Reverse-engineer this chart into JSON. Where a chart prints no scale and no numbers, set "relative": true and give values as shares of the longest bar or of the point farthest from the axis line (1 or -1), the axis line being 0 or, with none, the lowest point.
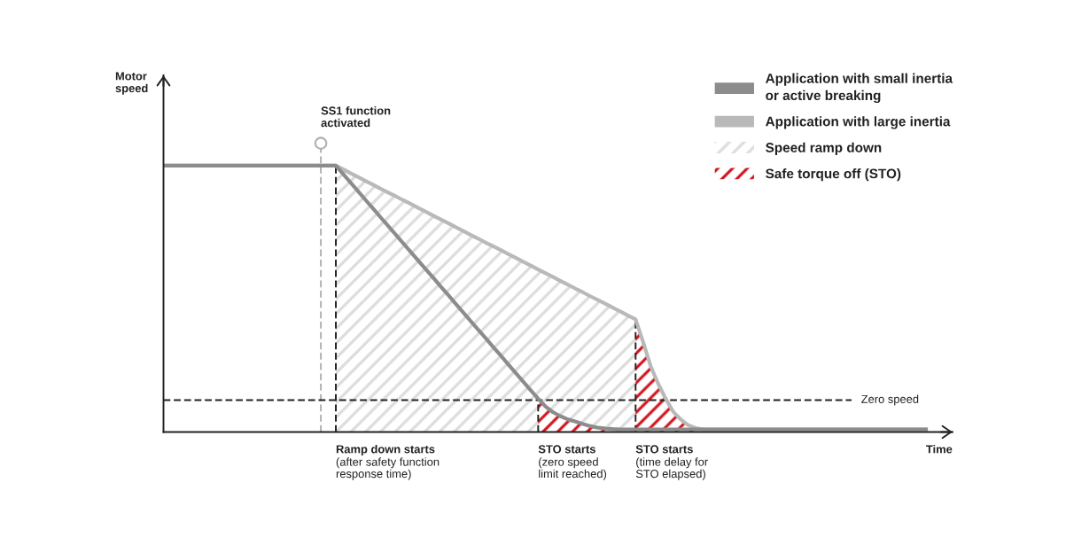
{
  "chart_data": {
    "type": "line",
    "relative": true,
    "xlabel": "Time",
    "legend": "top right",
    "categories": [
      null,
      null,
      null,
      null,
      null,
      null,
      null,
      null,
      null,
      null,
      null,
      null,
      null,
      null,
      null,
      null,
      null,
      null,
      null,
      null,
      null,
      null,
      null,
      null,
      null,
      null,
      null,
      null,
      null,
      null,
      null,
      null,
      null,
      null,
      null,
      null,
      null,
      null,
      null,
      null,
      null,
      null,
      null,
      null,
      null,
      null,
      null,
      null,
      null,
      null,
      null,
      null,
      null,
      null,
      null,
      null,
      null,
      null,
      null,
      null,
      null,
      null,
      null,
      null,
      null,
      null,
      null,
      null,
      null,
      null,
      null,
      null,
      null,
      null,
      null,
      null,
      null,
      null,
      null,
      null,
      null,
      null,
      null,
      null,
      null,
      null,
      null,
      null,
      null,
      null,
      null,
      null,
      null,
      null,
      null,
      null,
      null,
      null,
      null,
      null,
      null,
      null,
      null
    ],
    "series": [
      {
        "name": "Application with small inertia\nor active breaking",
        "color": "#8c8c8c",
        "values": [
          1,
          1,
          1,
          1,
          1,
          1,
          1,
          1,
          1,
          1,
          1,
          1,
          1,
          1,
          1,
          1,
          1,
          1,
          1,
          1,
          1,
          1,
          1,
          1.0,
          0.968,
          0.935,
          0.903,
          0.87,
          0.838,
          0.805,
          0.773,
          0.741,
          0.708,
          0.676,
          0.643,
          0.611,
          0.579,
          0.546,
          0.514,
          0.481,
          0.449,
          0.416,
          0.384,
          0.352,
          0.319,
          0.287,
          0.254,
          0.222,
          0.189,
          0.157,
          0.125,
          0.095,
          0.074,
          0.059,
          0.047,
          0.039,
          0.03,
          0.022,
          0.016,
          0.013,
          0.011,
          0.01,
          0.01,
          0.01,
          0.01,
          0.01,
          0.01,
          0.01,
          0.01,
          0.01,
          0.01,
          0.01,
          0.01,
          0.01,
          0.01,
          0.01,
          0.01,
          0.01,
          0.01,
          0.01,
          0.01,
          0.01,
          0.01,
          0.01,
          0.01,
          0.01,
          0.01,
          0.01,
          0.01,
          0.01,
          0.01,
          0.01,
          0.01,
          0.01,
          0.01,
          0.01,
          0.01,
          0.01,
          0.01,
          0.01,
          0.01,
          0.01,
          0.01
        ]
      },
      {
        "name": "Application with large inertia",
        "color": "#b9b9b9",
        "values": [
          1,
          1,
          1,
          1,
          1,
          1,
          1,
          1,
          1,
          1,
          1,
          1,
          1,
          1,
          1,
          1,
          1,
          1,
          1,
          1,
          1,
          1,
          1,
          1,
          0.986,
          0.971,
          0.957,
          0.942,
          0.928,
          0.913,
          0.899,
          0.885,
          0.87,
          0.856,
          0.841,
          0.827,
          0.812,
          0.798,
          0.784,
          0.769,
          0.755,
          0.74,
          0.726,
          0.711,
          0.697,
          0.683,
          0.668,
          0.654,
          0.639,
          0.625,
          0.61,
          0.596,
          0.582,
          0.567,
          0.553,
          0.538,
          0.524,
          0.509,
          0.495,
          0.481,
          0.466,
          0.452,
          0.437,
          0.423,
          0.338,
          0.248,
          0.182,
          0.126,
          0.077,
          0.048,
          0.026,
          0.015,
          0.01,
          0.01,
          0.01,
          0.01,
          0.01,
          0.01,
          0.01,
          0.01,
          0.01,
          0.01,
          0.01,
          0.01,
          0.01,
          0.01,
          0.01,
          0.01,
          0.01,
          0.01,
          0.01,
          0.01,
          0.01,
          0.01,
          0.01,
          0.01,
          0.01,
          0.01,
          0.01,
          0.01,
          0.01,
          0.01,
          0.01
        ]
      },
      {
        "name": "Speed ramp down",
        "type": "area",
        "color": "#dcdcdc",
        "values": [
          null,
          null,
          null,
          null,
          null,
          null,
          null,
          null,
          null,
          null,
          null,
          null,
          null,
          null,
          null,
          null,
          null,
          null,
          null,
          null,
          null,
          null,
          null,
          1,
          0.986,
          0.971,
          0.957,
          0.942,
          0.928,
          0.913,
          0.899,
          0.885,
          0.87,
          0.856,
          0.841,
          0.827,
          0.812,
          0.798,
          0.784,
          0.769,
          0.755,
          0.74,
          0.726,
          0.711,
          0.697,
          0.683,
          0.668,
          0.654,
          0.639,
          0.625,
          0.61,
          0.596,
          0.582,
          0.567,
          0.553,
          0.538,
          0.524,
          0.509,
          0.495,
          0.481,
          0.466,
          0.452,
          0.437,
          0.423,
          null,
          null,
          null,
          null,
          null,
          null,
          null,
          null,
          null,
          null,
          null,
          null,
          null,
          null,
          null,
          null,
          null,
          null,
          null,
          null,
          null,
          null,
          null,
          null,
          null,
          null,
          null,
          null,
          null,
          null,
          null,
          null,
          null,
          null,
          null,
          null,
          null,
          null,
          null
        ]
      },
      {
        "name": "Safe torque off (STO)",
        "type": "area",
        "color": "#d2141e",
        "values": [
          null,
          null,
          null,
          null,
          null,
          null,
          null,
          null,
          null,
          null,
          null,
          null,
          null,
          null,
          null,
          null,
          null,
          null,
          null,
          null,
          null,
          null,
          null,
          null,
          null,
          null,
          null,
          null,
          null,
          null,
          null,
          null,
          null,
          null,
          null,
          null,
          null,
          null,
          null,
          null,
          null,
          null,
          null,
          null,
          null,
          null,
          null,
          null,
          null,
          null,
          0.125,
          0.095,
          0.074,
          0.059,
          0.047,
          0.039,
          0.03,
          0.022,
          0.016,
          0.013,
          null,
          null,
          null,
          0.423,
          0.338,
          0.248,
          0.182,
          0.126,
          0.077,
          0.048,
          0.026,
          0.015,
          0.01,
          null,
          null,
          null,
          null,
          null,
          null,
          null,
          null,
          null,
          null,
          null,
          null,
          null,
          null,
          null,
          null,
          null,
          null,
          null,
          null,
          null,
          null,
          null,
          null,
          null,
          null,
          null,
          null,
          null,
          null
        ]
      }
    ],
    "ref_lines": [
      {
        "axis": "y",
        "value": 0.12,
        "label": "Zero speed",
        "color": "#222222",
        "line_style": "dashed"
      }
    ],
    "annotations": [
      "Motor\nspeed",
      "SS1 function\nactivated",
      "Ramp down starts\n(after safety function\nresponse time)",
      "STO starts\n(zero speed\nlimit reached)",
      "STO starts\n(time delay for\nSTO elapsed)"
    ]
  }
}
